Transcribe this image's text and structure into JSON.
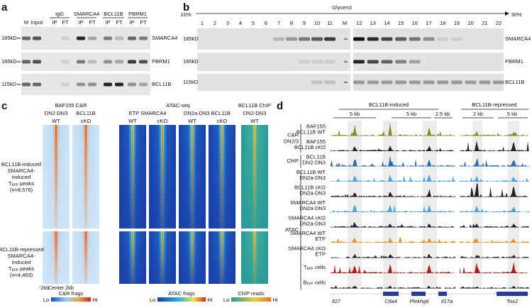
{
  "panel_a": {
    "letter": "a",
    "groups": [
      "IgG",
      "SMARCA4",
      "BCL11B",
      "PBRM1"
    ],
    "lanes": [
      "M",
      "Input",
      "IP",
      "FT",
      "IP",
      "FT",
      "IP",
      "FT",
      "IP",
      "FT"
    ],
    "markers": [
      "185kD",
      "185kD",
      "115kD"
    ],
    "proteins": [
      "SMARCA4",
      "PBRM1",
      "BCL11B"
    ]
  },
  "panel_b": {
    "letter": "b",
    "gradient_label": "Glycerol",
    "gradient_start": "10%",
    "gradient_end": "30%",
    "fractions": [
      "1",
      "2",
      "3",
      "4",
      "5",
      "6",
      "7",
      "8",
      "9",
      "10",
      "11",
      "M",
      "12",
      "13",
      "14",
      "15",
      "16",
      "17",
      "18",
      "19",
      "20",
      "21",
      "22"
    ],
    "markers": [
      "185kD",
      "185kD",
      "115kD"
    ],
    "proteins": [
      "SMARCA4",
      "PBRM1",
      "BCL11B"
    ]
  },
  "panel_c": {
    "letter": "c",
    "group_titles": [
      "BAF155 C&R",
      "ATAC-seq",
      "BCL11B ChIP"
    ],
    "subtitles": [
      "DN2-DN3",
      "BCL11B",
      "ETP SMARCA4",
      "DN2a-DN3 BCL11B",
      "DN2-DN3"
    ],
    "genotypes": [
      "WT",
      "cKO",
      "WT",
      "cKO",
      "WT",
      "cKO",
      "WT"
    ],
    "peak_sets": [
      {
        "lines": [
          "BCL11B-induced",
          "SMARCA4-",
          "induced"
        ],
        "teff_main": "T",
        "teff_sub": "EFF",
        "teff_rest": " peaks",
        "count": "(n=8,576)"
      },
      {
        "lines": [
          "BCL11B-repressed",
          "SMARCA4-",
          "induced"
        ],
        "teff_main": "T",
        "teff_sub": "EFF",
        "teff_rest": " peaks",
        "count": "(n=4,463)"
      }
    ],
    "x_axis": [
      "-2kb",
      "Center",
      "2kb"
    ],
    "colorbars": [
      {
        "label": "C&R frags",
        "low": "Lo",
        "high": "Hi"
      },
      {
        "label": "ATAC frags",
        "low": "Lo",
        "high": "Hi"
      },
      {
        "label": "ChIP reads",
        "low": "Lo",
        "high": "Hi"
      }
    ]
  },
  "panel_d": {
    "letter": "d",
    "regions": [
      "BCL11B-induced",
      "BCL11B-repressed"
    ],
    "scales": [
      "5 kb",
      "5 kb",
      "2.5 kb",
      "2 kb",
      "5 kb"
    ],
    "groups": [
      {
        "lines": [
          "C&R",
          "DN2/3"
        ]
      },
      {
        "lines": [
          "ChIP"
        ]
      },
      {
        "lines": [
          "ATAC"
        ]
      }
    ],
    "tracks": [
      {
        "lines": [
          "BAF155",
          "BCL11B WT"
        ]
      },
      {
        "lines": [
          "BAF155",
          "BCL11B cKO"
        ]
      },
      {
        "lines": [
          "BCL11B",
          "DN2-DN3"
        ]
      },
      {
        "lines": [
          "BCL11B WT",
          "DN2a-DN3"
        ]
      },
      {
        "lines": [
          "BCL11B cKO",
          "DN2a-DN3"
        ]
      },
      {
        "lines": [
          "SMARCA4 WT",
          "DN2a-DN3"
        ]
      },
      {
        "lines": [
          "SMARCA4 cKO",
          "DN2a-DN3"
        ]
      },
      {
        "lines": [
          "SMARCA4 WT",
          "ETP"
        ]
      },
      {
        "lines": [
          "SMARCA4 cKO",
          "ETP"
        ]
      },
      {
        "main": "T",
        "sub": "EFF",
        "rest": " cells"
      },
      {
        "main": "B",
        "sub": "EFF",
        "rest": " cells"
      }
    ],
    "genes": [
      "Il27",
      "Ctla4",
      "Plekhg6",
      "Il17a",
      "Tox2"
    ]
  }
}
